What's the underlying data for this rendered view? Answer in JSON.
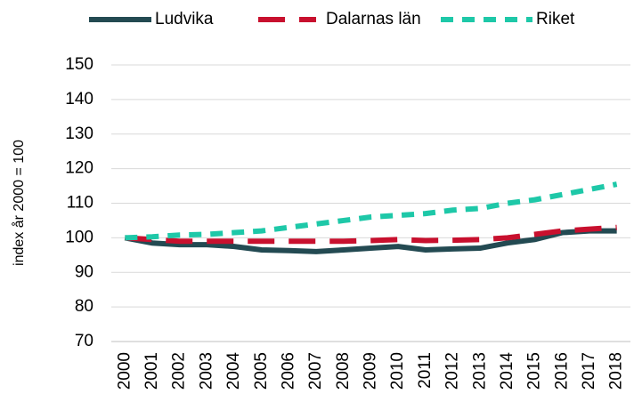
{
  "chart_data": {
    "type": "line",
    "y_label": "index år 2000 = 100",
    "categories": [
      "2000",
      "2001",
      "2002",
      "2003",
      "2004",
      "2005",
      "2006",
      "2007",
      "2008",
      "2009",
      "2010",
      "2011",
      "2012",
      "2013",
      "2014",
      "2015",
      "2016",
      "2017",
      "2018"
    ],
    "series": [
      {
        "name": "Ludvika",
        "color": "#234a52",
        "dash": "solid",
        "values": [
          100,
          98.5,
          98,
          98,
          97.5,
          96.5,
          96.3,
          96,
          96.5,
          97,
          97.5,
          96.5,
          96.8,
          97,
          98.5,
          99.5,
          101.5,
          102,
          102
        ]
      },
      {
        "name": "Dalarnas län",
        "color": "#c8102e",
        "dash": "long",
        "values": [
          100,
          99.5,
          99,
          99,
          99,
          99,
          99,
          99,
          99,
          99.2,
          99.5,
          99.2,
          99.3,
          99.5,
          100,
          101,
          102,
          102.5,
          103
        ]
      },
      {
        "name": "Riket",
        "color": "#1ec8a8",
        "dash": "short",
        "values": [
          100,
          100.3,
          100.8,
          101,
          101.5,
          102,
          103,
          104,
          105,
          106,
          106.5,
          107,
          108,
          108.5,
          110,
          111,
          112.5,
          114,
          115.5
        ]
      }
    ],
    "ylim": [
      70,
      150
    ],
    "yticks": [
      70,
      80,
      90,
      100,
      110,
      120,
      130,
      140,
      150
    ],
    "grid": true
  }
}
